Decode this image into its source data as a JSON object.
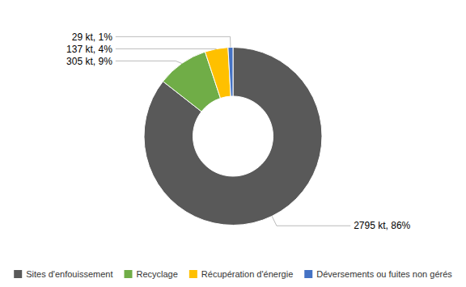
{
  "chart_data": {
    "type": "donut",
    "categories": [
      "Sites d'enfouissement",
      "Recyclage",
      "Récupération d'énergie",
      "Déversements ou fuites non gérés"
    ],
    "values": [
      2795,
      305,
      137,
      29
    ],
    "value_labels": [
      "2795 kt, 86%",
      "305 kt, 9%",
      "137 kt, 4%",
      "29 kt, 1%"
    ],
    "colors": [
      "#595959",
      "#70ad47",
      "#ffc000",
      "#4472c4"
    ],
    "data_labels": true,
    "legend": "bottom"
  }
}
